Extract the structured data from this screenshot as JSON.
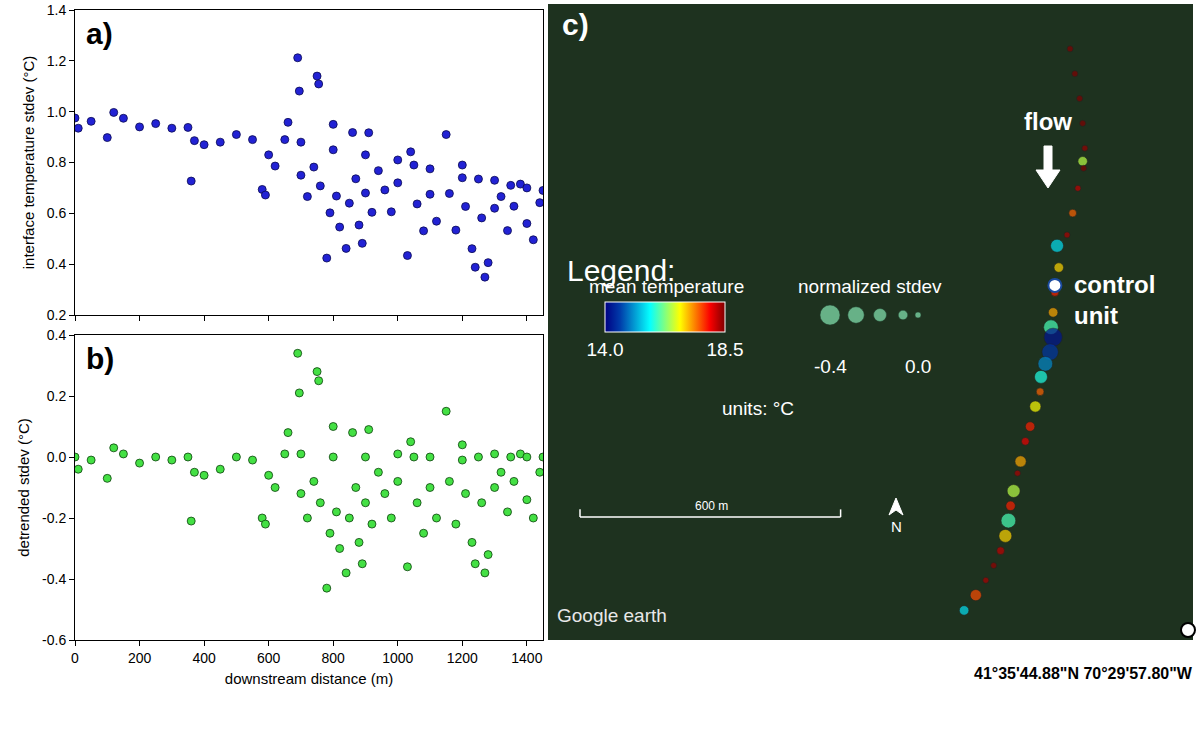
{
  "chart_data": [
    {
      "type": "scatter",
      "title": "a)",
      "y_label": "interface temperature stdev (°C)",
      "color": "#2222d4",
      "marker": "circle",
      "tick_labels": "y",
      "x": [
        0,
        10,
        50,
        100,
        120,
        150,
        200,
        250,
        300,
        350,
        360,
        370,
        400,
        450,
        500,
        550,
        580,
        590,
        600,
        620,
        650,
        660,
        690,
        695,
        700,
        700,
        720,
        740,
        750,
        755,
        760,
        780,
        790,
        800,
        800,
        810,
        820,
        840,
        850,
        860,
        870,
        880,
        890,
        900,
        900,
        910,
        920,
        940,
        960,
        980,
        1000,
        1000,
        1030,
        1040,
        1050,
        1060,
        1080,
        1100,
        1100,
        1120,
        1150,
        1160,
        1180,
        1200,
        1200,
        1210,
        1230,
        1240,
        1250,
        1260,
        1270,
        1280,
        1300,
        1300,
        1320,
        1340,
        1350,
        1360,
        1380,
        1400,
        1400,
        1420,
        1440,
        1450
      ],
      "values": [
        0.975,
        0.935,
        0.962,
        0.898,
        0.997,
        0.974,
        0.94,
        0.953,
        0.935,
        0.938,
        0.727,
        0.886,
        0.87,
        0.88,
        0.91,
        0.89,
        0.694,
        0.672,
        0.83,
        0.786,
        0.89,
        0.958,
        1.212,
        1.081,
        0.75,
        0.88,
        0.666,
        0.782,
        1.14,
        1.109,
        0.708,
        0.424,
        0.602,
        0.95,
        0.85,
        0.668,
        0.546,
        0.462,
        0.64,
        0.918,
        0.736,
        0.554,
        0.482,
        0.68,
        0.83,
        0.917,
        0.604,
        0.768,
        0.692,
        0.606,
        0.72,
        0.81,
        0.434,
        0.842,
        0.79,
        0.637,
        0.531,
        0.675,
        0.775,
        0.569,
        0.91,
        0.678,
        0.534,
        0.79,
        0.74,
        0.627,
        0.461,
        0.388,
        0.735,
        0.582,
        0.349,
        0.406,
        0.62,
        0.73,
        0.666,
        0.532,
        0.71,
        0.628,
        0.715,
        0.56,
        0.7,
        0.496,
        0.642,
        0.69
      ],
      "xlim": [
        0,
        1450
      ],
      "xticks": [
        0,
        200,
        400,
        600,
        800,
        1000,
        1200,
        1400
      ],
      "ylim": [
        0.2,
        1.4
      ],
      "yticks": [
        0.2,
        0.4,
        0.6,
        0.8,
        {
          "value": 1,
          "label": "1.0"
        },
        1.2,
        1.4
      ]
    },
    {
      "type": "scatter",
      "title": "b)",
      "x_label": "downstream distance (m)",
      "y_label": "detrended stdev (°C)",
      "color": "#44e044",
      "marker": "circle",
      "x": [
        0,
        10,
        50,
        100,
        120,
        150,
        200,
        250,
        300,
        350,
        360,
        370,
        400,
        450,
        500,
        550,
        580,
        590,
        600,
        620,
        650,
        660,
        690,
        695,
        700,
        700,
        720,
        740,
        750,
        755,
        760,
        780,
        790,
        800,
        800,
        810,
        820,
        840,
        850,
        860,
        870,
        880,
        890,
        900,
        900,
        910,
        920,
        940,
        960,
        980,
        1000,
        1000,
        1030,
        1040,
        1050,
        1060,
        1080,
        1100,
        1100,
        1120,
        1150,
        1160,
        1180,
        1200,
        1200,
        1210,
        1230,
        1240,
        1250,
        1260,
        1270,
        1280,
        1300,
        1300,
        1320,
        1340,
        1350,
        1360,
        1380,
        1400,
        1400,
        1420,
        1440,
        1450
      ],
      "values": [
        0,
        -0.04,
        -0.01,
        -0.07,
        0.03,
        0.01,
        -0.02,
        0,
        -0.01,
        0,
        -0.21,
        -0.05,
        -0.06,
        -0.04,
        0,
        -0.01,
        -0.2,
        -0.22,
        -0.06,
        -0.1,
        0.01,
        0.08,
        0.34,
        0.21,
        -0.12,
        0.01,
        -0.2,
        -0.08,
        0.28,
        0.25,
        -0.15,
        -0.43,
        -0.25,
        0.1,
        0,
        -0.18,
        -0.3,
        -0.38,
        -0.2,
        0.08,
        -0.1,
        -0.28,
        -0.35,
        -0.15,
        0,
        0.09,
        -0.22,
        -0.05,
        -0.12,
        -0.2,
        -0.08,
        0.01,
        -0.36,
        0.05,
        0,
        -0.15,
        -0.25,
        -0.1,
        0,
        -0.2,
        0.15,
        -0.08,
        -0.22,
        0.04,
        -0.01,
        -0.12,
        -0.28,
        -0.35,
        0,
        -0.15,
        -0.38,
        -0.32,
        -0.1,
        0.01,
        -0.05,
        -0.18,
        0,
        -0.08,
        0.01,
        -0.14,
        0,
        -0.2,
        -0.05,
        0
      ],
      "xlim": [
        0,
        1450
      ],
      "xticks": [
        0,
        200,
        400,
        600,
        800,
        1000,
        1200,
        1400
      ],
      "ylim": [
        -0.6,
        0.4
      ],
      "yticks": [
        -0.6,
        -0.4,
        -0.2,
        {
          "value": 0,
          "label": "0.0"
        },
        0.2,
        0.4
      ]
    },
    {
      "type": "bubble",
      "title": "c)",
      "tick_labels": false,
      "marker": "circle",
      "xlim": [
        0,
        1485
      ],
      "ylim": [
        0,
        1460
      ],
      "x": [
        1202,
        1213,
        1224,
        1231,
        1236,
        1231,
        1233,
        1220,
        1208,
        1195,
        1172,
        1176,
        1167,
        1163,
        1158,
        1163,
        1156,
        1145,
        1135,
        1133,
        1122,
        1110,
        1099,
        1088,
        1081,
        1072,
        1065,
        1060,
        1053,
        1042,
        1026,
        1008,
        985,
        958
      ],
      "y": [
        1357,
        1300,
        1243,
        1186,
        1129,
        1099,
        1083,
        1037,
        980,
        930,
        905,
        855,
        798,
        752,
        718,
        695,
        661,
        634,
        604,
        570,
        536,
        490,
        456,
        410,
        383,
        342,
        308,
        274,
        239,
        205,
        171,
        137,
        103,
        68
      ],
      "mean_temperature": [
        18.5,
        18.5,
        18.5,
        18.5,
        18.4,
        16.5,
        18.5,
        18.2,
        17.5,
        18.3,
        15.5,
        17,
        17.8,
        17.2,
        16,
        14.2,
        14.5,
        15,
        15.8,
        17.5,
        16.8,
        17.8,
        18,
        17.2,
        18.3,
        16.5,
        17.8,
        16,
        17,
        18.2,
        18.4,
        18.3,
        17.6,
        15.5
      ],
      "normalized_stdev": [
        0,
        0,
        0,
        0,
        0,
        -0.1,
        0,
        0,
        -0.05,
        0,
        -0.2,
        -0.1,
        -0.05,
        -0.1,
        -0.25,
        -0.35,
        -0.3,
        -0.25,
        -0.2,
        -0.05,
        -0.15,
        -0.1,
        -0.05,
        -0.15,
        0,
        -0.2,
        -0.1,
        -0.25,
        -0.2,
        -0.05,
        0,
        0,
        -0.15,
        -0.1
      ],
      "colorbar": {
        "title": "mean temperature",
        "range": [
          14,
          18.5
        ],
        "ticks": [
          {
            "value": 14,
            "label": "14.0"
          },
          {
            "value": 18.5,
            "label": "18.5"
          }
        ]
      },
      "size_legend": {
        "title": "normalized stdev",
        "color": "#86e8b4",
        "values": [
          -0.4,
          -0.3,
          -0.2,
          -0.1,
          0
        ],
        "labels": [
          "-0.4",
          null,
          null,
          null,
          "0.0"
        ]
      },
      "legend_title": "Legend:",
      "units": "units: °C",
      "flow": "flow",
      "north": "N",
      "scale_bar": {
        "label": "600 m",
        "length": 600
      },
      "control_unit": {
        "label": "control unit",
        "x": 1167,
        "y": 814
      },
      "credit": "Google earth",
      "coordinates": "41°35'44.88\"N 70°29'57.80\"W"
    }
  ]
}
